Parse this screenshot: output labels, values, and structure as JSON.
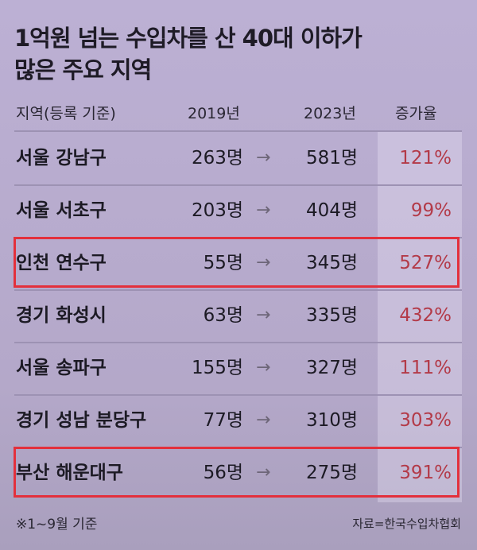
{
  "chart_data": {
    "type": "table",
    "title_line1": "1억원 넘는 수입차를 산 40대 이하가",
    "title_line2": "많은 주요 지역",
    "columns": [
      "지역(등록 기준)",
      "2019년",
      "2023년",
      "증가율"
    ],
    "arrow": "→",
    "rows": [
      {
        "region": "서울 강남구",
        "y2019": "263명",
        "y2023": "581명",
        "rate": "121%",
        "highlighted": false
      },
      {
        "region": "서울 서초구",
        "y2019": "203명",
        "y2023": "404명",
        "rate": "99%",
        "highlighted": false
      },
      {
        "region": "인천 연수구",
        "y2019": "55명",
        "y2023": "345명",
        "rate": "527%",
        "highlighted": true
      },
      {
        "region": "경기 화성시",
        "y2019": "63명",
        "y2023": "335명",
        "rate": "432%",
        "highlighted": false
      },
      {
        "region": "서울 송파구",
        "y2019": "155명",
        "y2023": "327명",
        "rate": "111%",
        "highlighted": false
      },
      {
        "region": "경기 성남 분당구",
        "y2019": "77명",
        "y2023": "310명",
        "rate": "303%",
        "highlighted": false
      },
      {
        "region": "부산 해운대구",
        "y2019": "56명",
        "y2023": "275명",
        "rate": "391%",
        "highlighted": true
      }
    ],
    "footnote": "※1~9월 기준",
    "source": "자료=한국수입차협회"
  },
  "colors": {
    "background": "#b9acd0",
    "highlight_box": "#e3303c",
    "rate_text": "#b33a48"
  }
}
